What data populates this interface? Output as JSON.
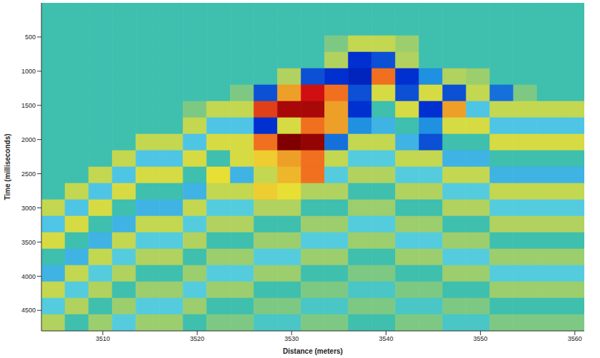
{
  "chart_data": {
    "type": "heatmap",
    "xlabel": "Distance (meters)",
    "ylabel": "Time (milliseconds)",
    "xlim": [
      3503.5,
      3561
    ],
    "xticks": [
      3510,
      3520,
      3530,
      3540,
      3550,
      3560
    ],
    "ylim": [
      0,
      4800
    ],
    "yticks": [
      500,
      1000,
      1500,
      2000,
      2500,
      3000,
      3500,
      4000,
      4500
    ],
    "x_bins": [
      3503.5,
      3506,
      3508.5,
      3511,
      3513.5,
      3516,
      3518.5,
      3521,
      3523.5,
      3526,
      3528.5,
      3531,
      3533.5,
      3536,
      3538.5,
      3541,
      3543.5,
      3546,
      3548.5,
      3551,
      3553.5,
      3556,
      3558.5,
      3561
    ],
    "y_bins": [
      0,
      240,
      480,
      720,
      960,
      1200,
      1440,
      1680,
      1920,
      2160,
      2400,
      2640,
      2880,
      3120,
      3360,
      3600,
      3840,
      4080,
      4320,
      4560,
      4800
    ],
    "color_range": [
      -1,
      1
    ],
    "cells": [
      [
        0,
        0,
        0,
        0,
        0,
        0,
        0,
        0,
        0,
        0,
        0,
        0,
        0,
        0,
        0,
        0,
        0,
        0,
        0,
        0,
        0,
        0,
        0
      ],
      [
        0,
        0,
        0,
        0,
        0,
        0,
        0,
        0,
        0,
        0,
        0,
        0,
        0,
        0,
        0,
        0,
        0,
        0,
        0,
        0,
        0,
        0,
        0
      ],
      [
        0,
        0,
        0,
        0,
        0,
        0,
        0,
        0,
        0,
        0,
        0,
        0,
        0.1,
        0.25,
        0.25,
        0.15,
        0,
        0,
        0,
        0,
        0,
        0,
        0
      ],
      [
        0,
        0,
        0,
        0,
        0,
        0,
        0,
        0,
        0,
        0,
        0,
        0,
        0.2,
        -0.6,
        -0.5,
        0.2,
        0,
        0,
        0,
        0,
        0,
        0,
        0
      ],
      [
        0,
        0,
        0,
        0,
        0,
        0,
        0,
        0,
        0,
        0,
        0.2,
        -0.5,
        -0.6,
        -0.7,
        0.6,
        -0.6,
        -0.3,
        0.2,
        0.15,
        0,
        0,
        0,
        0
      ],
      [
        0,
        0,
        0,
        0,
        0,
        0,
        0,
        0,
        0.1,
        -0.5,
        0.5,
        0.8,
        0.6,
        -0.5,
        0.3,
        -0.5,
        0.3,
        -0.5,
        0.25,
        -0.4,
        0.1,
        0,
        0
      ],
      [
        0,
        0,
        0,
        0,
        0,
        0,
        0.1,
        0.25,
        0.25,
        0.7,
        0.9,
        0.9,
        0.5,
        -0.6,
        0,
        0.3,
        -0.6,
        0.5,
        -0.15,
        0.25,
        0.25,
        0.25,
        0.25
      ],
      [
        0,
        0,
        0,
        0,
        0,
        0,
        0.25,
        -0.15,
        -0.15,
        -0.6,
        0.3,
        0.6,
        0.5,
        -0.3,
        -0.2,
        0,
        -0.3,
        0.3,
        0.3,
        -0.15,
        -0.15,
        -0.15,
        -0.15
      ],
      [
        0,
        0,
        0,
        0,
        0.25,
        0.25,
        -0.15,
        0.3,
        0.3,
        0.6,
        1.0,
        0.95,
        -0.4,
        0.25,
        0.25,
        -0.2,
        -0.5,
        0,
        0,
        0.3,
        0.3,
        0.3,
        0.3
      ],
      [
        0,
        0,
        0,
        0.25,
        -0.15,
        -0.15,
        0.3,
        0,
        0.3,
        0.4,
        0.5,
        0.6,
        0.25,
        -0.1,
        -0.1,
        0.25,
        0.25,
        -0.2,
        -0.2,
        0,
        0,
        0,
        0
      ],
      [
        0,
        0,
        0.25,
        -0.15,
        0.3,
        0.3,
        0,
        0.35,
        -0.2,
        0.25,
        0.45,
        0.6,
        -0.1,
        0.2,
        0.2,
        -0.1,
        -0.1,
        0.25,
        0.25,
        -0.2,
        -0.2,
        -0.2,
        -0.2
      ],
      [
        0,
        0.25,
        -0.15,
        0.3,
        0,
        0,
        -0.2,
        0.25,
        0.25,
        0.4,
        0.35,
        0.2,
        0.2,
        0,
        0,
        0.2,
        0.2,
        -0.1,
        -0.1,
        0.25,
        0.25,
        0.25,
        0.25
      ],
      [
        0.25,
        -0.15,
        0.3,
        0,
        -0.2,
        -0.2,
        0.25,
        -0.1,
        -0.1,
        0.2,
        0.2,
        0,
        0,
        0.15,
        0.15,
        0,
        0,
        0.2,
        0.2,
        -0.1,
        -0.1,
        -0.1,
        -0.1
      ],
      [
        -0.15,
        0.3,
        0,
        -0.2,
        0.25,
        0.25,
        -0.1,
        0.2,
        0.2,
        0,
        0,
        0.15,
        0.15,
        -0.1,
        -0.1,
        0.15,
        0.15,
        0,
        0,
        0.2,
        0.2,
        0.2,
        0.2
      ],
      [
        0.3,
        0,
        -0.2,
        0.25,
        -0.1,
        -0.1,
        0.2,
        0,
        0,
        0.15,
        0.15,
        -0.1,
        -0.1,
        0.15,
        0.15,
        -0.1,
        -0.1,
        0.15,
        0.15,
        0,
        0,
        0,
        0
      ],
      [
        0,
        -0.2,
        0.25,
        -0.1,
        0.2,
        0.2,
        0,
        0.15,
        0.15,
        -0.1,
        -0.1,
        0.15,
        0.15,
        0,
        0,
        0.15,
        0.15,
        -0.1,
        -0.1,
        0.15,
        0.15,
        0.15,
        0.15
      ],
      [
        -0.2,
        0.25,
        -0.1,
        0.2,
        0,
        0,
        0.15,
        -0.1,
        -0.1,
        0.15,
        0.15,
        0,
        0,
        0.1,
        0.1,
        0,
        0,
        0.15,
        0.15,
        -0.1,
        -0.1,
        -0.1,
        -0.1
      ],
      [
        0.25,
        -0.1,
        0.2,
        0,
        0.15,
        0.15,
        -0.1,
        0.15,
        0.15,
        0,
        0,
        0.1,
        0.1,
        -0.05,
        -0.05,
        0.1,
        0.1,
        0,
        0,
        0.15,
        0.15,
        0.15,
        0.15
      ],
      [
        -0.1,
        0.2,
        0,
        0.15,
        -0.1,
        -0.1,
        0.15,
        0,
        0,
        0.1,
        0.1,
        -0.05,
        -0.05,
        0.1,
        0.1,
        -0.05,
        -0.05,
        0.1,
        0.1,
        0,
        0,
        0,
        0
      ],
      [
        0.2,
        0,
        0.15,
        -0.1,
        0.15,
        0.15,
        0,
        0.1,
        0.1,
        -0.05,
        -0.05,
        0.1,
        0.1,
        0,
        0,
        0.1,
        0.1,
        -0.05,
        -0.05,
        0.1,
        0.1,
        0.1,
        0.1
      ]
    ]
  }
}
